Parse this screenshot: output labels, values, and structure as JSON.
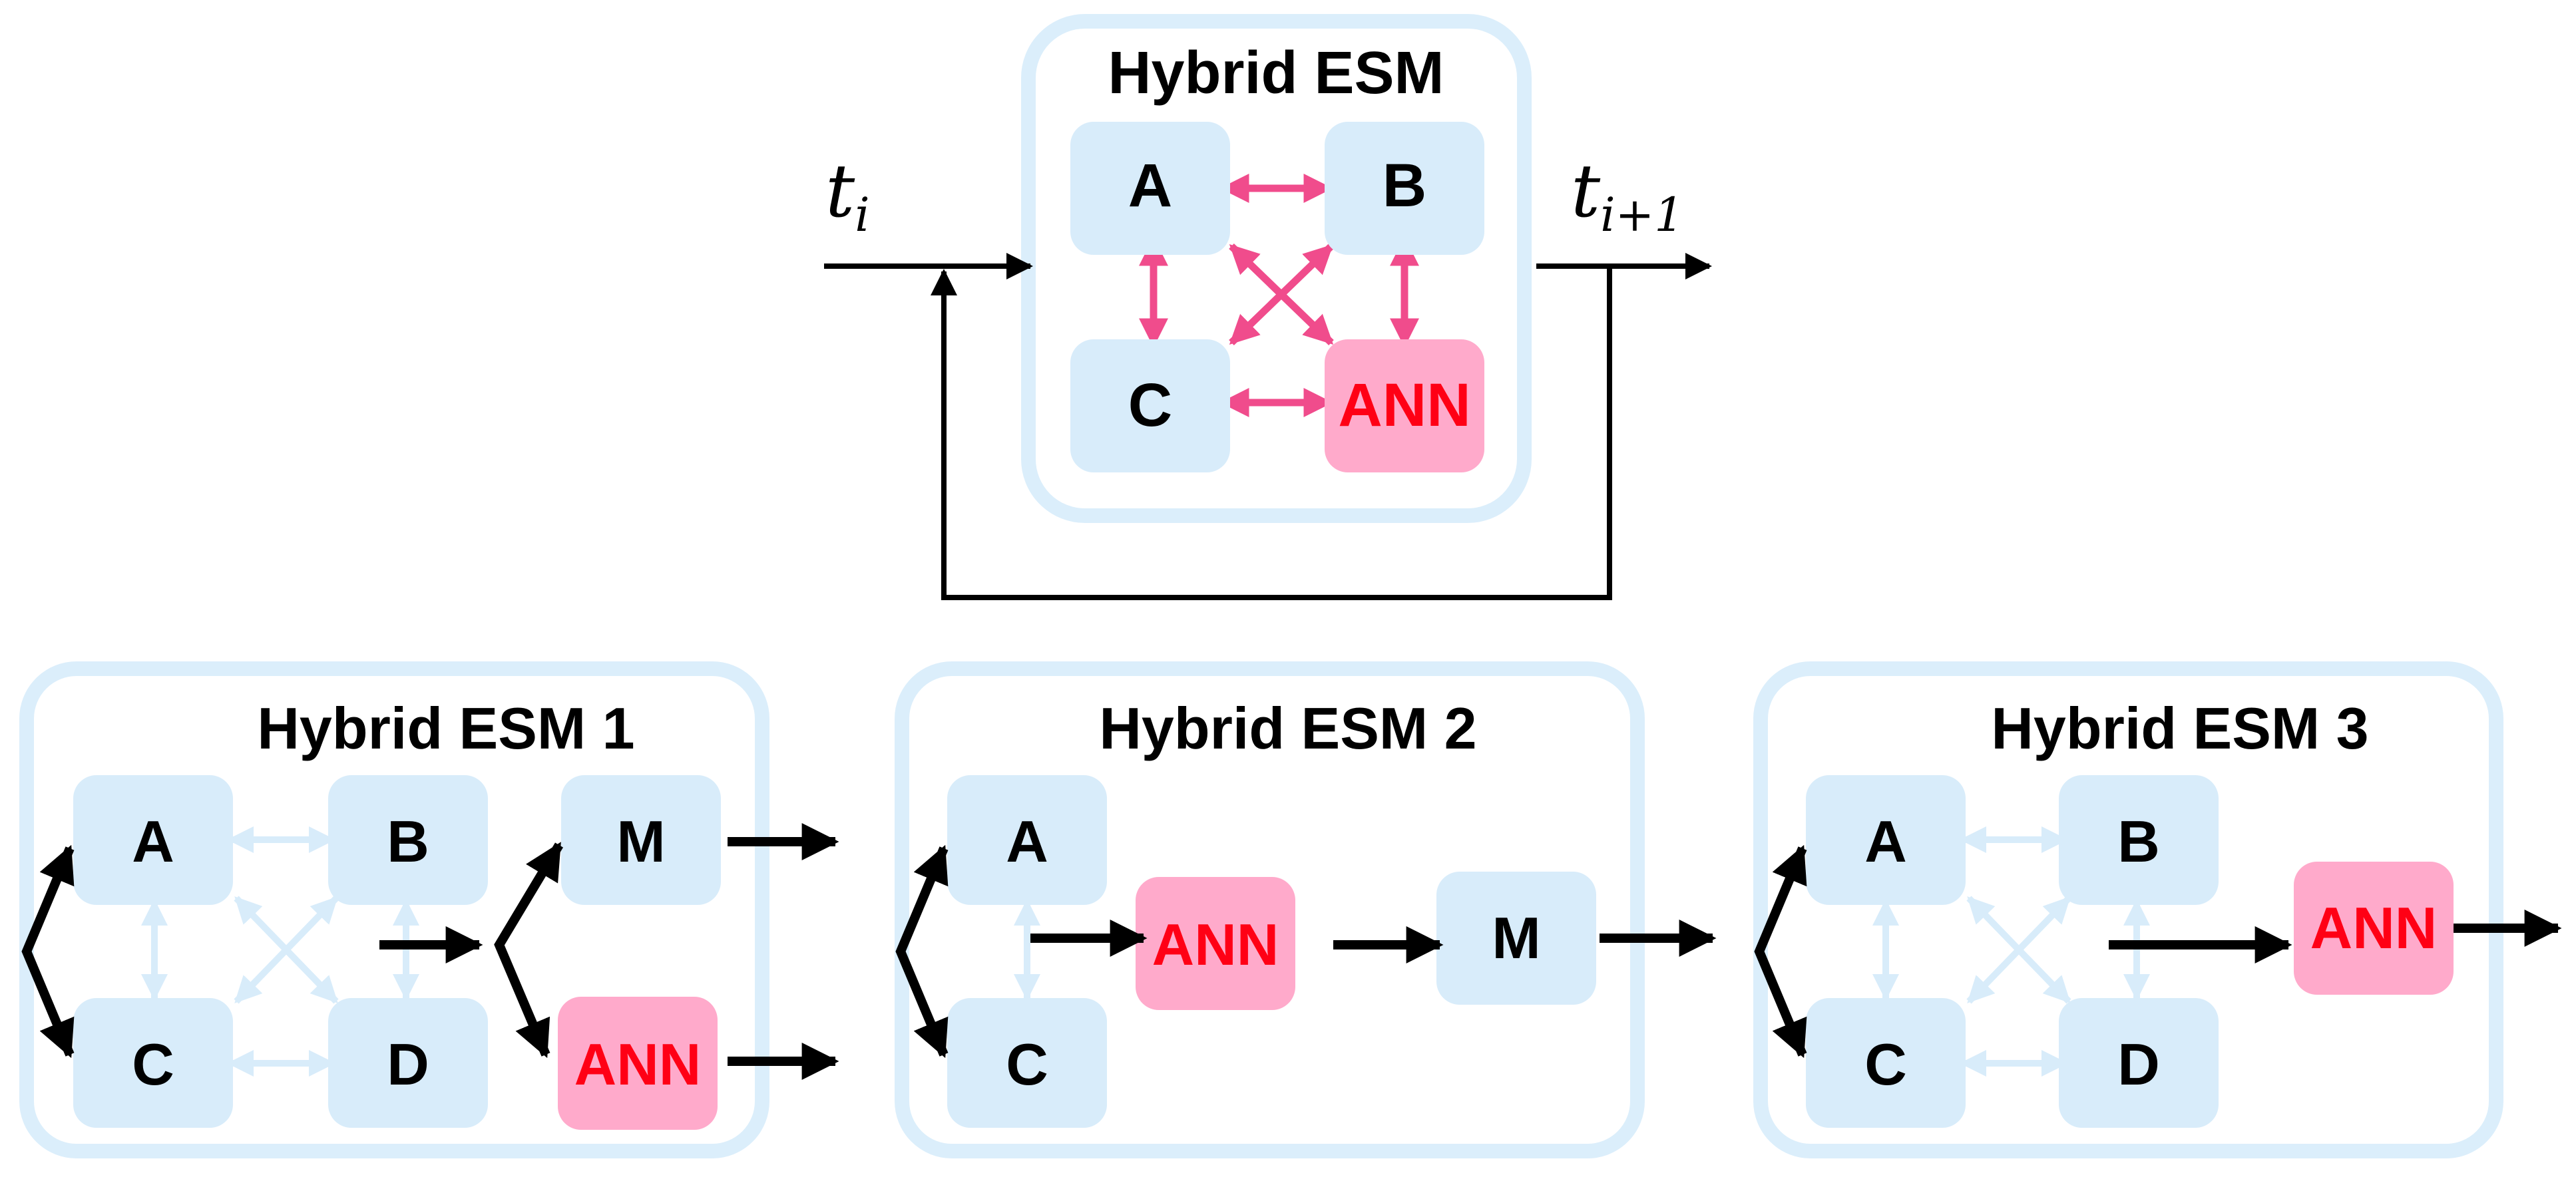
{
  "colors": {
    "frame": "#dbeefb",
    "node": "#d8ecfa",
    "ann_fill": "#ffaacb",
    "ann_text": "#ff0015",
    "pink_arrow": "#f04c8c",
    "light_arrow": "#d8ecfa",
    "black": "#000000"
  },
  "top": {
    "title": "Hybrid ESM",
    "input_label": {
      "base": "t",
      "sub": "i"
    },
    "output_label": {
      "base": "t",
      "sub": "i+1"
    },
    "nodes": {
      "a": "A",
      "b": "B",
      "c": "C",
      "ann": "ANN"
    }
  },
  "panels": [
    {
      "title": "Hybrid ESM 1",
      "nodes": {
        "a": "A",
        "b": "B",
        "c": "C",
        "d": "D",
        "m": "M",
        "ann": "ANN"
      }
    },
    {
      "title": "Hybrid ESM 2",
      "nodes": {
        "a": "A",
        "c": "C",
        "ann": "ANN",
        "m": "M"
      }
    },
    {
      "title": "Hybrid ESM 3",
      "nodes": {
        "a": "A",
        "b": "B",
        "c": "C",
        "d": "D",
        "ann": "ANN"
      }
    }
  ]
}
